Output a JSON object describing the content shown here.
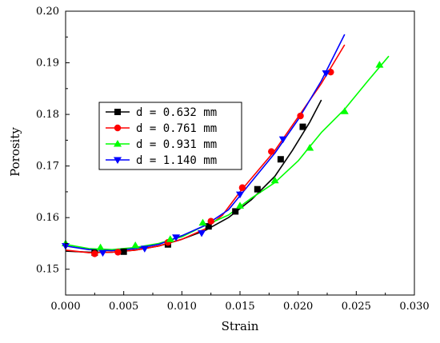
{
  "chart_data": {
    "type": "line",
    "title": "",
    "xlabel": "Strain",
    "ylabel": "Porosity",
    "xlim": [
      0.0,
      0.03
    ],
    "ylim": [
      0.145,
      0.2
    ],
    "x_ticks": [
      "0.000",
      "0.005",
      "0.010",
      "0.015",
      "0.020",
      "0.025",
      "0.030"
    ],
    "y_ticks": [
      "0.15",
      "0.16",
      "0.17",
      "0.18",
      "0.19",
      "0.20"
    ],
    "grid": false,
    "legend_position": "center-left",
    "series": [
      {
        "name": "d = 0.632 mm",
        "color": "#000000",
        "marker": "square",
        "line": [
          [
            0,
            0.1535
          ],
          [
            0.002,
            0.1533
          ],
          [
            0.004,
            0.1533
          ],
          [
            0.006,
            0.1537
          ],
          [
            0.008,
            0.1545
          ],
          [
            0.01,
            0.1558
          ],
          [
            0.012,
            0.1575
          ],
          [
            0.014,
            0.16
          ],
          [
            0.016,
            0.1635
          ],
          [
            0.018,
            0.168
          ],
          [
            0.0195,
            0.173
          ],
          [
            0.021,
            0.1785
          ],
          [
            0.022,
            0.1828
          ]
        ],
        "markers": [
          [
            0.0025,
            0.1532
          ],
          [
            0.005,
            0.1534
          ],
          [
            0.0088,
            0.1548
          ],
          [
            0.0123,
            0.1583
          ],
          [
            0.0146,
            0.1612
          ],
          [
            0.0165,
            0.1655
          ],
          [
            0.0185,
            0.1713
          ],
          [
            0.0204,
            0.1776
          ]
        ]
      },
      {
        "name": "d = 0.761 mm",
        "color": "#ff0000",
        "marker": "circle",
        "line": [
          [
            0,
            0.1537
          ],
          [
            0.002,
            0.1532
          ],
          [
            0.004,
            0.1533
          ],
          [
            0.006,
            0.1537
          ],
          [
            0.008,
            0.1545
          ],
          [
            0.01,
            0.1558
          ],
          [
            0.012,
            0.1578
          ],
          [
            0.0135,
            0.1605
          ],
          [
            0.015,
            0.165
          ],
          [
            0.0165,
            0.169
          ],
          [
            0.018,
            0.173
          ],
          [
            0.02,
            0.1795
          ],
          [
            0.022,
            0.186
          ],
          [
            0.024,
            0.1935
          ]
        ],
        "markers": [
          [
            0.0025,
            0.153
          ],
          [
            0.0045,
            0.1533
          ],
          [
            0.0088,
            0.1552
          ],
          [
            0.0125,
            0.1593
          ],
          [
            0.0152,
            0.1658
          ],
          [
            0.0177,
            0.1728
          ],
          [
            0.0202,
            0.1797
          ],
          [
            0.0228,
            0.1882
          ]
        ]
      },
      {
        "name": "d = 0.931 mm",
        "color": "#00ff00",
        "marker": "triangle-up",
        "line": [
          [
            0,
            0.1548
          ],
          [
            0.002,
            0.154
          ],
          [
            0.004,
            0.1538
          ],
          [
            0.006,
            0.1542
          ],
          [
            0.008,
            0.155
          ],
          [
            0.01,
            0.1563
          ],
          [
            0.012,
            0.1585
          ],
          [
            0.014,
            0.1605
          ],
          [
            0.016,
            0.1638
          ],
          [
            0.018,
            0.1668
          ],
          [
            0.02,
            0.171
          ],
          [
            0.022,
            0.1765
          ],
          [
            0.024,
            0.181
          ],
          [
            0.026,
            0.1865
          ],
          [
            0.0278,
            0.1913
          ]
        ],
        "markers": [
          [
            0,
            0.155
          ],
          [
            0.003,
            0.1542
          ],
          [
            0.006,
            0.1546
          ],
          [
            0.009,
            0.1558
          ],
          [
            0.0118,
            0.159
          ],
          [
            0.015,
            0.1623
          ],
          [
            0.018,
            0.1672
          ],
          [
            0.021,
            0.1735
          ],
          [
            0.024,
            0.1806
          ],
          [
            0.027,
            0.1896
          ]
        ]
      },
      {
        "name": "d = 1.140 mm",
        "color": "#0000ff",
        "marker": "triangle-down",
        "line": [
          [
            0,
            0.1545
          ],
          [
            0.002,
            0.1538
          ],
          [
            0.004,
            0.1536
          ],
          [
            0.006,
            0.154
          ],
          [
            0.008,
            0.1548
          ],
          [
            0.01,
            0.1565
          ],
          [
            0.012,
            0.1585
          ],
          [
            0.014,
            0.1615
          ],
          [
            0.016,
            0.167
          ],
          [
            0.018,
            0.1725
          ],
          [
            0.02,
            0.179
          ],
          [
            0.022,
            0.1865
          ],
          [
            0.024,
            0.1955
          ]
        ],
        "markers": [
          [
            0,
            0.1545
          ],
          [
            0.0032,
            0.1532
          ],
          [
            0.0068,
            0.154
          ],
          [
            0.0095,
            0.1562
          ],
          [
            0.0117,
            0.157
          ],
          [
            0.015,
            0.1645
          ],
          [
            0.0187,
            0.1752
          ],
          [
            0.0224,
            0.188
          ]
        ]
      }
    ]
  }
}
